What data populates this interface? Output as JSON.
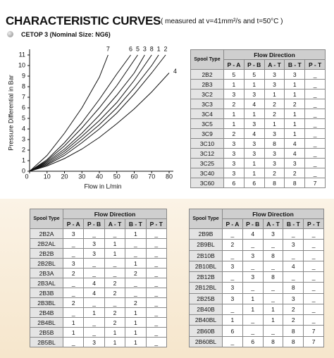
{
  "header": {
    "title": "CHARACTERISTIC CURVES",
    "note": "( measured at v=41mm²/s and  t=50°C )",
    "subtitle": "CETOP 3 (Nominal Size: NG6)"
  },
  "chart_data": {
    "type": "line",
    "x_label": "Flow in L/min",
    "y_label": "Pressure Differential in Bar",
    "xlim": [
      0,
      80
    ],
    "ylim": [
      0,
      11
    ],
    "xticks": [
      0,
      10,
      20,
      30,
      40,
      50,
      60,
      70,
      80
    ],
    "yticks": [
      0,
      1,
      2,
      3,
      4,
      5,
      6,
      7,
      8,
      9,
      10,
      11
    ],
    "series": [
      {
        "name": "7",
        "color": "#111111",
        "x": [
          0,
          10,
          20,
          30,
          40,
          45
        ],
        "values": [
          0,
          1.5,
          3.6,
          6.0,
          8.9,
          11
        ]
      },
      {
        "name": "6",
        "color": "#111111",
        "x": [
          0,
          10,
          20,
          30,
          40,
          50,
          58
        ],
        "values": [
          0,
          1.1,
          2.7,
          4.6,
          6.8,
          9.2,
          11
        ]
      },
      {
        "name": "5",
        "color": "#111111",
        "x": [
          0,
          10,
          20,
          30,
          40,
          50,
          62
        ],
        "values": [
          0,
          1.0,
          2.4,
          4.1,
          6.0,
          8.1,
          11
        ]
      },
      {
        "name": "3",
        "color": "#111111",
        "x": [
          0,
          10,
          20,
          30,
          40,
          50,
          60,
          66
        ],
        "values": [
          0,
          0.9,
          2.1,
          3.6,
          5.3,
          7.2,
          9.3,
          11
        ]
      },
      {
        "name": "8",
        "color": "#111111",
        "x": [
          0,
          10,
          20,
          30,
          40,
          50,
          60,
          70
        ],
        "values": [
          0,
          0.8,
          1.9,
          3.3,
          4.8,
          6.5,
          8.6,
          11
        ]
      },
      {
        "name": "1",
        "color": "#111111",
        "x": [
          0,
          10,
          20,
          30,
          40,
          50,
          60,
          70,
          74
        ],
        "values": [
          0,
          0.7,
          1.7,
          3.0,
          4.4,
          6.0,
          7.9,
          10.0,
          11
        ]
      },
      {
        "name": "2",
        "color": "#111111",
        "x": [
          0,
          10,
          20,
          30,
          40,
          50,
          60,
          70,
          78
        ],
        "values": [
          0,
          0.6,
          1.5,
          2.7,
          4.0,
          5.5,
          7.3,
          9.3,
          11
        ]
      },
      {
        "name": "4",
        "color": "#111111",
        "x": [
          0,
          10,
          20,
          30,
          40,
          50,
          60,
          70,
          80
        ],
        "values": [
          0,
          0.5,
          1.2,
          2.1,
          3.2,
          4.5,
          5.9,
          7.5,
          9.3
        ]
      }
    ]
  },
  "tables": [
    {
      "spool": "Spool Type",
      "flow": "Flow Direction",
      "columns": [
        "P - A",
        "P - B",
        "A - T",
        "B - T",
        "P - T"
      ],
      "rows": [
        [
          "2B2",
          "5",
          "5",
          "3",
          "3",
          "_"
        ],
        [
          "2B3",
          "1",
          "1",
          "3",
          "1",
          "_"
        ],
        [
          "3C2",
          "3",
          "3",
          "1",
          "1",
          "_"
        ],
        [
          "3C3",
          "2",
          "4",
          "2",
          "2",
          "_"
        ],
        [
          "3C4",
          "1",
          "1",
          "2",
          "1",
          "_"
        ],
        [
          "3C5",
          "1",
          "3",
          "1",
          "1",
          "_"
        ],
        [
          "3C9",
          "2",
          "4",
          "3",
          "1",
          "_"
        ],
        [
          "3C10",
          "3",
          "3",
          "8",
          "4",
          "_"
        ],
        [
          "3C12",
          "3",
          "3",
          "3",
          "4",
          "_"
        ],
        [
          "3C25",
          "3",
          "1",
          "3",
          "3",
          "_"
        ],
        [
          "3C40",
          "3",
          "1",
          "2",
          "2",
          "_"
        ],
        [
          "3C60",
          "6",
          "6",
          "8",
          "8",
          "7"
        ]
      ]
    },
    {
      "spool": "Spool Type",
      "flow": "Flow Direction",
      "columns": [
        "P - A",
        "P - B",
        "A - T",
        "B - T",
        "P - T"
      ],
      "rows": [
        [
          "2B2A",
          "3",
          "_",
          "_",
          "1",
          "_"
        ],
        [
          "2B2AL",
          "_",
          "3",
          "1",
          "_",
          "_"
        ],
        [
          "2B2B",
          "_",
          "3",
          "1",
          "_",
          "_"
        ],
        [
          "2B2BL",
          "3",
          "_",
          "_",
          "1",
          "_"
        ],
        [
          "2B3A",
          "2",
          "_",
          "_",
          "2",
          "_"
        ],
        [
          "2B3AL",
          "_",
          "4",
          "2",
          "_",
          "_"
        ],
        [
          "2B3B",
          "_",
          "4",
          "2",
          "_",
          "_"
        ],
        [
          "2B3BL",
          "2",
          "_",
          "_",
          "2",
          "_"
        ],
        [
          "2B4B",
          "_",
          "1",
          "2",
          "1",
          "_"
        ],
        [
          "2B4BL",
          "1",
          "_",
          "2",
          "1",
          "_"
        ],
        [
          "2B5B",
          "1",
          "_",
          "1",
          "1",
          "_"
        ],
        [
          "2B5BL",
          "_",
          "3",
          "1",
          "1",
          "_"
        ]
      ]
    },
    {
      "spool": "Spool Type",
      "flow": "Flow Direction",
      "columns": [
        "P - A",
        "P - B",
        "A - T",
        "B - T",
        "P - T"
      ],
      "rows": [
        [
          "2B9B",
          "_",
          "4",
          "3",
          "_",
          "_"
        ],
        [
          "2B9BL",
          "2",
          "_",
          "_",
          "3",
          "_"
        ],
        [
          "2B10B",
          "_",
          "3",
          "8",
          "_",
          "_"
        ],
        [
          "2B10BL",
          "3",
          "_",
          "_",
          "4",
          "_"
        ],
        [
          "2B12B",
          "_",
          "3",
          "8",
          "_",
          "_"
        ],
        [
          "2B12BL",
          "3",
          "_",
          "_",
          "8",
          "_"
        ],
        [
          "2B25B",
          "3",
          "1",
          "_",
          "3",
          "_"
        ],
        [
          "2B40B",
          "_",
          "1",
          "1",
          "2",
          "_"
        ],
        [
          "2B40BL",
          "1",
          "_",
          "1",
          "2",
          "_"
        ],
        [
          "2B60B",
          "6",
          "_",
          "_",
          "8",
          "7"
        ],
        [
          "2B60BL",
          "_",
          "6",
          "8",
          "8",
          "7"
        ]
      ]
    }
  ]
}
